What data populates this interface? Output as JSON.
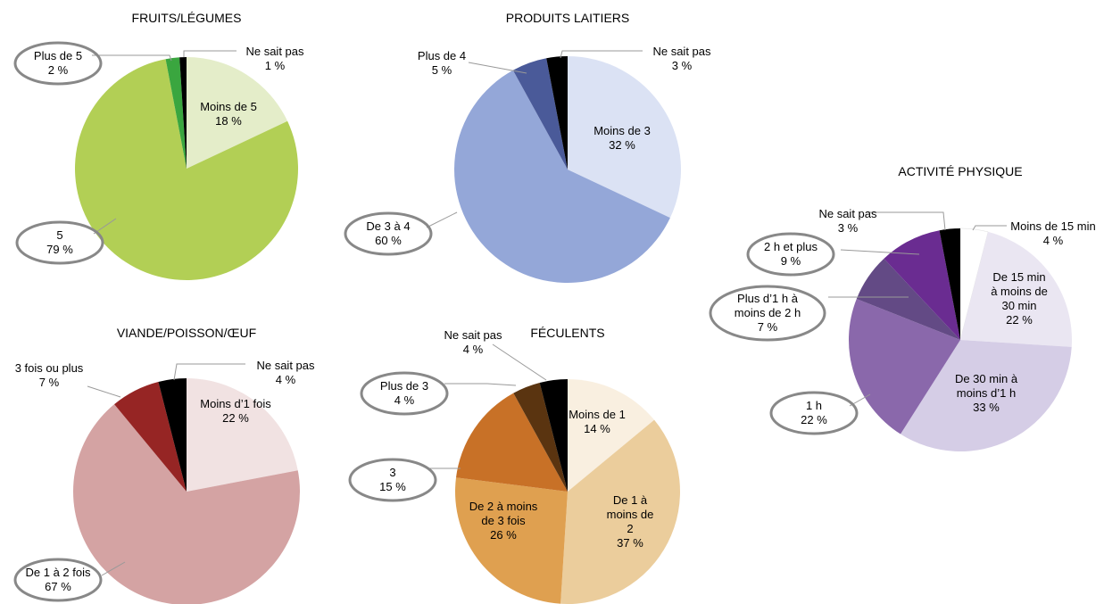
{
  "chart_data": [
    {
      "type": "pie",
      "title": "FRUITS/LÉGUMES",
      "categories": [
        "Moins de 5",
        "5",
        "Plus de 5",
        "Ne sait pas"
      ],
      "values": [
        18,
        79,
        2,
        1
      ],
      "value_labels": [
        "18 %",
        "79 %",
        "2 %",
        "1 %"
      ],
      "colors": [
        "#e4edc9",
        "#b2cf55",
        "#3aa63f",
        "#000000"
      ]
    },
    {
      "type": "pie",
      "title": "PRODUITS LAITIERS",
      "categories": [
        "Moins de 3",
        "De 3 à 4",
        "Plus de 4",
        "Ne sait pas"
      ],
      "values": [
        32,
        60,
        5,
        3
      ],
      "value_labels": [
        "32 %",
        "60 %",
        "5 %",
        "3 %"
      ],
      "colors": [
        "#dbe2f4",
        "#94a7d8",
        "#4a5a99",
        "#000000"
      ]
    },
    {
      "type": "pie",
      "title": "VIANDE/POISSON/ŒUF",
      "categories": [
        "Moins d’1 fois",
        "De 1 à 2 fois",
        "3 fois ou plus",
        "Ne sait pas"
      ],
      "values": [
        22,
        67,
        7,
        4
      ],
      "value_labels": [
        "22 %",
        "67 %",
        "7 %",
        "4 %"
      ],
      "colors": [
        "#f1e2e2",
        "#d4a3a3",
        "#962524",
        "#000000"
      ]
    },
    {
      "type": "pie",
      "title": "FÉCULENTS",
      "categories": [
        "Moins de 1",
        "De 1 à moins de 2",
        "De 2 à moins de 3 fois",
        "3",
        "Plus de 3",
        "Ne sait pas"
      ],
      "values": [
        14,
        37,
        26,
        15,
        4,
        4
      ],
      "value_labels": [
        "14 %",
        "37 %",
        "26 %",
        "15 %",
        "4 %",
        "4 %"
      ],
      "colors": [
        "#f9efe0",
        "#ebcd9c",
        "#dfa050",
        "#c87127",
        "#5a3410",
        "#000000"
      ]
    },
    {
      "type": "pie",
      "title": "ACTIVITÉ PHYSIQUE",
      "categories": [
        "Moins de 15 min",
        "De 15 min à moins de 30 min",
        "De 30 min à moins d’1 h",
        "1 h",
        "Plus d’1 h à moins de 2 h",
        "2 h et plus",
        "Ne sait pas"
      ],
      "values": [
        4,
        22,
        33,
        22,
        7,
        9,
        3
      ],
      "value_labels": [
        "4 %",
        "22 %",
        "33 %",
        "22 %",
        "7 %",
        "9 %",
        "3 %"
      ],
      "colors": [
        "#ffffff",
        "#eae6f2",
        "#d5cde6",
        "#8a68ab",
        "#634a85",
        "#6a2c91",
        "#000000"
      ]
    }
  ]
}
